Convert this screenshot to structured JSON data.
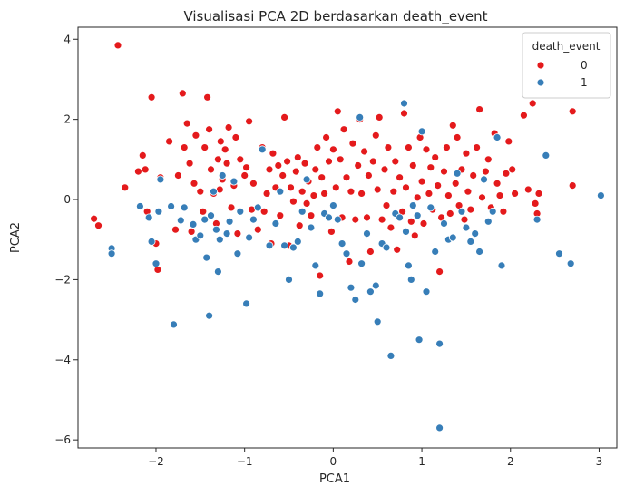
{
  "chart_data": {
    "type": "scatter",
    "title": "Visualisasi PCA 2D berdasarkan death_event",
    "xlabel": "PCA1",
    "ylabel": "PCA2",
    "xlim": [
      -2.88,
      3.2
    ],
    "ylim": [
      -6.2,
      4.3
    ],
    "xticks": [
      -2,
      -1,
      0,
      1,
      2,
      3
    ],
    "xtick_labels": [
      "−2",
      "−1",
      "0",
      "1",
      "2",
      "3"
    ],
    "yticks": [
      -6,
      -4,
      -2,
      0,
      2,
      4
    ],
    "ytick_labels": [
      "−6",
      "−4",
      "−2",
      "0",
      "2",
      "4"
    ],
    "grid": false,
    "legend": {
      "title": "death_event",
      "placement": "top-right"
    },
    "series": [
      {
        "name": "0",
        "color": "#e41a1c",
        "points": [
          [
            -2.43,
            3.85
          ],
          [
            -2.65,
            -0.65
          ],
          [
            -2.7,
            -0.48
          ],
          [
            -2.35,
            0.3
          ],
          [
            -2.2,
            0.7
          ],
          [
            -2.15,
            1.1
          ],
          [
            -2.12,
            0.75
          ],
          [
            -2.1,
            -0.3
          ],
          [
            -2.05,
            2.55
          ],
          [
            -2.0,
            -1.1
          ],
          [
            -1.98,
            -1.75
          ],
          [
            -1.95,
            0.55
          ],
          [
            -1.85,
            1.45
          ],
          [
            -1.78,
            -0.75
          ],
          [
            -1.75,
            0.6
          ],
          [
            -1.7,
            2.65
          ],
          [
            -1.68,
            1.3
          ],
          [
            -1.65,
            1.9
          ],
          [
            -1.62,
            0.9
          ],
          [
            -1.6,
            -0.8
          ],
          [
            -1.57,
            0.4
          ],
          [
            -1.55,
            1.6
          ],
          [
            -1.5,
            0.2
          ],
          [
            -1.47,
            -0.3
          ],
          [
            -1.45,
            1.3
          ],
          [
            -1.42,
            2.55
          ],
          [
            -1.4,
            1.75
          ],
          [
            -1.38,
            0.75
          ],
          [
            -1.35,
            0.15
          ],
          [
            -1.32,
            -0.6
          ],
          [
            -1.3,
            1.0
          ],
          [
            -1.28,
            0.25
          ],
          [
            -1.27,
            1.45
          ],
          [
            -1.25,
            0.5
          ],
          [
            -1.22,
            1.25
          ],
          [
            -1.2,
            0.9
          ],
          [
            -1.18,
            1.8
          ],
          [
            -1.15,
            -0.2
          ],
          [
            -1.12,
            0.35
          ],
          [
            -1.1,
            1.55
          ],
          [
            -1.08,
            -0.85
          ],
          [
            -1.05,
            1.0
          ],
          [
            -1.0,
            0.6
          ],
          [
            -0.98,
            0.8
          ],
          [
            -0.95,
            1.95
          ],
          [
            -0.92,
            -0.25
          ],
          [
            -0.9,
            0.4
          ],
          [
            -0.85,
            -0.75
          ],
          [
            -0.8,
            1.3
          ],
          [
            -0.78,
            -0.3
          ],
          [
            -0.75,
            0.15
          ],
          [
            -0.72,
            0.75
          ],
          [
            -0.7,
            -1.1
          ],
          [
            -0.68,
            1.15
          ],
          [
            -0.65,
            0.3
          ],
          [
            -0.62,
            0.85
          ],
          [
            -0.6,
            -0.4
          ],
          [
            -0.57,
            0.6
          ],
          [
            -0.55,
            2.05
          ],
          [
            -0.52,
            0.95
          ],
          [
            -0.5,
            -1.15
          ],
          [
            -0.48,
            0.3
          ],
          [
            -0.45,
            -0.05
          ],
          [
            -0.42,
            0.7
          ],
          [
            -0.4,
            1.05
          ],
          [
            -0.38,
            -0.65
          ],
          [
            -0.35,
            0.2
          ],
          [
            -0.32,
            0.9
          ],
          [
            -0.3,
            -0.1
          ],
          [
            -0.28,
            0.45
          ],
          [
            -0.25,
            -0.4
          ],
          [
            -0.22,
            0.1
          ],
          [
            -0.2,
            0.75
          ],
          [
            -0.18,
            1.3
          ],
          [
            -0.15,
            -1.9
          ],
          [
            -0.13,
            0.55
          ],
          [
            -0.1,
            0.15
          ],
          [
            -0.08,
            1.55
          ],
          [
            -0.05,
            0.95
          ],
          [
            -0.02,
            -0.8
          ],
          [
            0.0,
            1.25
          ],
          [
            0.03,
            0.3
          ],
          [
            0.05,
            2.2
          ],
          [
            0.08,
            1.0
          ],
          [
            0.1,
            -0.45
          ],
          [
            0.12,
            1.75
          ],
          [
            0.15,
            0.55
          ],
          [
            0.18,
            -1.55
          ],
          [
            0.2,
            0.2
          ],
          [
            0.22,
            1.4
          ],
          [
            0.25,
            -0.5
          ],
          [
            0.28,
            0.85
          ],
          [
            0.3,
            2.0
          ],
          [
            0.32,
            0.15
          ],
          [
            0.35,
            1.2
          ],
          [
            0.38,
            -0.45
          ],
          [
            0.4,
            0.6
          ],
          [
            0.42,
            -1.3
          ],
          [
            0.45,
            0.95
          ],
          [
            0.48,
            1.6
          ],
          [
            0.5,
            0.25
          ],
          [
            0.52,
            2.05
          ],
          [
            0.55,
            -0.5
          ],
          [
            0.58,
            0.75
          ],
          [
            0.6,
            -0.15
          ],
          [
            0.62,
            1.3
          ],
          [
            0.65,
            -0.7
          ],
          [
            0.68,
            0.2
          ],
          [
            0.7,
            0.95
          ],
          [
            0.72,
            -1.25
          ],
          [
            0.75,
            0.55
          ],
          [
            0.78,
            -0.3
          ],
          [
            0.8,
            2.15
          ],
          [
            0.82,
            0.3
          ],
          [
            0.85,
            1.3
          ],
          [
            0.88,
            -0.55
          ],
          [
            0.9,
            0.85
          ],
          [
            0.92,
            -0.9
          ],
          [
            0.95,
            0.05
          ],
          [
            0.98,
            1.55
          ],
          [
            1.0,
            0.45
          ],
          [
            1.02,
            -0.6
          ],
          [
            1.05,
            1.25
          ],
          [
            1.08,
            0.15
          ],
          [
            1.1,
            0.8
          ],
          [
            1.12,
            -0.25
          ],
          [
            1.15,
            1.05
          ],
          [
            1.18,
            0.35
          ],
          [
            1.2,
            -1.8
          ],
          [
            1.22,
            -0.45
          ],
          [
            1.25,
            0.7
          ],
          [
            1.28,
            1.3
          ],
          [
            1.3,
            0.1
          ],
          [
            1.32,
            -0.35
          ],
          [
            1.35,
            1.85
          ],
          [
            1.38,
            0.4
          ],
          [
            1.4,
            1.55
          ],
          [
            1.42,
            -0.15
          ],
          [
            1.45,
            0.75
          ],
          [
            1.48,
            -0.5
          ],
          [
            1.5,
            1.15
          ],
          [
            1.52,
            0.2
          ],
          [
            1.55,
            -0.25
          ],
          [
            1.58,
            0.6
          ],
          [
            1.6,
            -0.85
          ],
          [
            1.62,
            1.3
          ],
          [
            1.65,
            2.25
          ],
          [
            1.68,
            0.05
          ],
          [
            1.72,
            0.7
          ],
          [
            1.75,
            1.0
          ],
          [
            1.78,
            -0.2
          ],
          [
            1.82,
            1.65
          ],
          [
            1.85,
            0.4
          ],
          [
            1.88,
            0.1
          ],
          [
            1.92,
            -0.3
          ],
          [
            1.95,
            0.65
          ],
          [
            1.98,
            1.45
          ],
          [
            2.02,
            0.75
          ],
          [
            2.05,
            0.15
          ],
          [
            2.15,
            2.1
          ],
          [
            2.2,
            0.25
          ],
          [
            2.25,
            2.4
          ],
          [
            2.28,
            -0.1
          ],
          [
            2.3,
            -0.35
          ],
          [
            2.32,
            0.15
          ],
          [
            2.7,
            2.2
          ],
          [
            2.7,
            0.35
          ]
        ]
      },
      {
        "name": "1",
        "color": "#377eb8",
        "points": [
          [
            -2.5,
            -1.22
          ],
          [
            -2.5,
            -1.35
          ],
          [
            -2.18,
            -0.17
          ],
          [
            -2.08,
            -0.45
          ],
          [
            -2.05,
            -1.05
          ],
          [
            -2.0,
            -1.6
          ],
          [
            -1.97,
            -0.3
          ],
          [
            -1.95,
            0.5
          ],
          [
            -1.83,
            -0.17
          ],
          [
            -1.8,
            -3.12
          ],
          [
            -1.72,
            -0.52
          ],
          [
            -1.68,
            -0.2
          ],
          [
            -1.58,
            -0.62
          ],
          [
            -1.55,
            -1.0
          ],
          [
            -1.5,
            -0.9
          ],
          [
            -1.45,
            -0.5
          ],
          [
            -1.43,
            -1.45
          ],
          [
            -1.4,
            -2.9
          ],
          [
            -1.38,
            -0.4
          ],
          [
            -1.35,
            0.2
          ],
          [
            -1.32,
            -0.75
          ],
          [
            -1.3,
            -1.8
          ],
          [
            -1.28,
            -1.0
          ],
          [
            -1.25,
            0.6
          ],
          [
            -1.2,
            -0.85
          ],
          [
            -1.17,
            -0.55
          ],
          [
            -1.12,
            0.45
          ],
          [
            -1.08,
            -1.35
          ],
          [
            -1.05,
            -0.3
          ],
          [
            -0.98,
            -2.6
          ],
          [
            -0.95,
            -0.95
          ],
          [
            -0.9,
            -0.5
          ],
          [
            -0.85,
            -0.2
          ],
          [
            -0.8,
            1.25
          ],
          [
            -0.72,
            -1.15
          ],
          [
            -0.65,
            -0.6
          ],
          [
            -0.6,
            0.2
          ],
          [
            -0.55,
            -1.15
          ],
          [
            -0.5,
            -2.0
          ],
          [
            -0.45,
            -1.2
          ],
          [
            -0.4,
            -1.05
          ],
          [
            -0.35,
            -0.3
          ],
          [
            -0.3,
            0.5
          ],
          [
            -0.25,
            -0.7
          ],
          [
            -0.2,
            -1.65
          ],
          [
            -0.15,
            -2.35
          ],
          [
            -0.1,
            -0.35
          ],
          [
            -0.05,
            -0.45
          ],
          [
            0.0,
            -0.15
          ],
          [
            0.05,
            -0.5
          ],
          [
            0.1,
            -1.1
          ],
          [
            0.15,
            -1.35
          ],
          [
            0.2,
            -2.2
          ],
          [
            0.25,
            -2.5
          ],
          [
            0.3,
            2.05
          ],
          [
            0.32,
            -1.6
          ],
          [
            0.38,
            -0.85
          ],
          [
            0.42,
            -2.3
          ],
          [
            0.48,
            -2.15
          ],
          [
            0.5,
            -3.05
          ],
          [
            0.55,
            -1.1
          ],
          [
            0.6,
            -1.2
          ],
          [
            0.65,
            -3.9
          ],
          [
            0.7,
            -0.35
          ],
          [
            0.75,
            -0.45
          ],
          [
            0.8,
            2.4
          ],
          [
            0.82,
            -0.8
          ],
          [
            0.85,
            -1.65
          ],
          [
            0.88,
            -2.0
          ],
          [
            0.9,
            -0.15
          ],
          [
            0.95,
            -0.4
          ],
          [
            0.97,
            -3.5
          ],
          [
            1.0,
            1.7
          ],
          [
            1.05,
            -2.3
          ],
          [
            1.1,
            -0.2
          ],
          [
            1.15,
            -1.3
          ],
          [
            1.2,
            -3.6
          ],
          [
            1.2,
            -5.7
          ],
          [
            1.25,
            -0.6
          ],
          [
            1.3,
            -1.0
          ],
          [
            1.35,
            -0.95
          ],
          [
            1.4,
            0.65
          ],
          [
            1.45,
            -0.3
          ],
          [
            1.5,
            -0.7
          ],
          [
            1.55,
            -1.05
          ],
          [
            1.6,
            -0.85
          ],
          [
            1.65,
            -1.3
          ],
          [
            1.7,
            0.5
          ],
          [
            1.75,
            -0.55
          ],
          [
            1.8,
            -0.3
          ],
          [
            1.85,
            1.55
          ],
          [
            1.9,
            -1.65
          ],
          [
            2.3,
            -0.5
          ],
          [
            2.4,
            1.1
          ],
          [
            2.55,
            -1.35
          ],
          [
            2.68,
            -1.6
          ],
          [
            3.02,
            0.1
          ]
        ]
      }
    ]
  }
}
